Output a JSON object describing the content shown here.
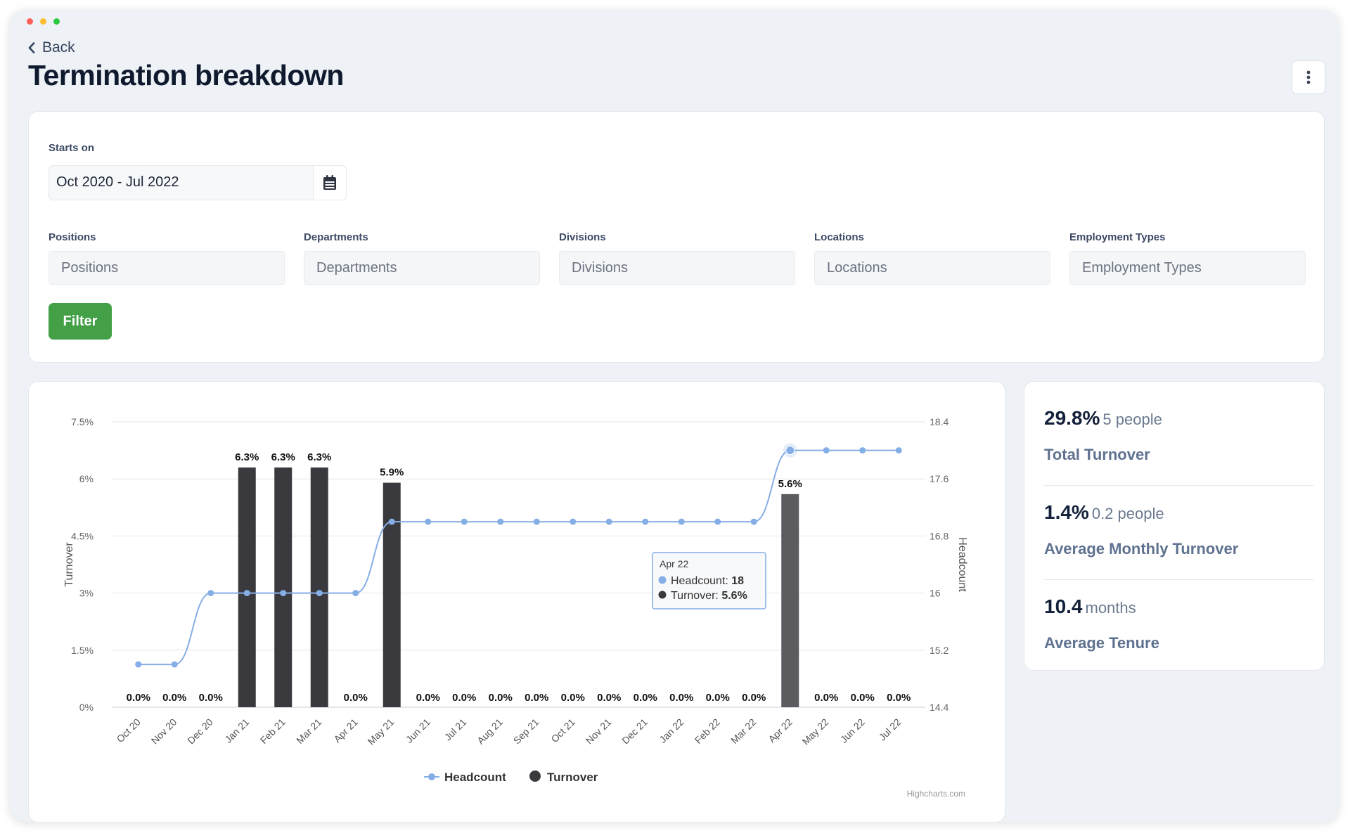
{
  "header": {
    "back_label": "Back",
    "title": "Termination breakdown"
  },
  "filters": {
    "starts_on_label": "Starts on",
    "date_range": "Oct 2020 - Jul 2022",
    "fields": [
      {
        "label": "Positions",
        "placeholder": "Positions"
      },
      {
        "label": "Departments",
        "placeholder": "Departments"
      },
      {
        "label": "Divisions",
        "placeholder": "Divisions"
      },
      {
        "label": "Locations",
        "placeholder": "Locations"
      },
      {
        "label": "Employment Types",
        "placeholder": "Employment Types"
      }
    ],
    "filter_button": "Filter"
  },
  "chart_data": {
    "type": "bar",
    "categories": [
      "Oct 20",
      "Nov 20",
      "Dec 20",
      "Jan 21",
      "Feb 21",
      "Mar 21",
      "Apr 21",
      "May 21",
      "Jun 21",
      "Jul 21",
      "Aug 21",
      "Sep 21",
      "Oct 21",
      "Nov 21",
      "Dec 21",
      "Jan 22",
      "Feb 22",
      "Mar 22",
      "Apr 22",
      "May 22",
      "Jun 22",
      "Jul 22"
    ],
    "series": [
      {
        "name": "Turnover",
        "type": "bar",
        "axis": "left",
        "values": [
          0,
          0,
          0,
          6.3,
          6.3,
          6.3,
          0,
          5.9,
          0,
          0,
          0,
          0,
          0,
          0,
          0,
          0,
          0,
          0,
          5.6,
          0,
          0,
          0
        ]
      },
      {
        "name": "Headcount",
        "type": "line",
        "axis": "right",
        "values": [
          15,
          15,
          16,
          16,
          16,
          16,
          16,
          17,
          17,
          17,
          17,
          17,
          17,
          17,
          17,
          17,
          17,
          17,
          18,
          18,
          18,
          18
        ]
      }
    ],
    "data_labels": [
      "0.0%",
      "0.0%",
      "0.0%",
      "6.3%",
      "6.3%",
      "6.3%",
      "0.0%",
      "5.9%",
      "0.0%",
      "0.0%",
      "0.0%",
      "0.0%",
      "0.0%",
      "0.0%",
      "0.0%",
      "0.0%",
      "0.0%",
      "0.0%",
      "5.6%",
      "0.0%",
      "0.0%",
      "0.0%"
    ],
    "y_left": {
      "label": "Turnover",
      "ticks": [
        "0%",
        "1.5%",
        "3%",
        "4.5%",
        "6%",
        "7.5%"
      ],
      "range": [
        0,
        7.5
      ]
    },
    "y_right": {
      "label": "Headcount",
      "ticks": [
        "14.4",
        "15.2",
        "16",
        "16.8",
        "17.6",
        "18.4"
      ],
      "range": [
        14.4,
        18.4
      ]
    },
    "legend": [
      "Headcount",
      "Turnover"
    ],
    "legend_position": "bottom-center",
    "grid": true,
    "credits": "Highcharts.com",
    "colors": {
      "bar": "#3a3a3e",
      "bar_hover": "#5b5b60",
      "line": "#86aee6"
    },
    "tooltip": {
      "category": "Apr 22",
      "headcount_label": "Headcount: ",
      "headcount_value": "18",
      "turnover_label": "Turnover: ",
      "turnover_value": "5.6%"
    }
  },
  "stats": [
    {
      "value": "29.8%",
      "unit": "5 people",
      "label": "Total Turnover"
    },
    {
      "value": "1.4%",
      "unit": "0.2 people",
      "label": "Average Monthly Turnover"
    },
    {
      "value": "10.4",
      "unit": "months",
      "label": "Average Tenure"
    }
  ],
  "colors": {
    "accent_green": "#43a047",
    "title": "#0f1a2e"
  }
}
